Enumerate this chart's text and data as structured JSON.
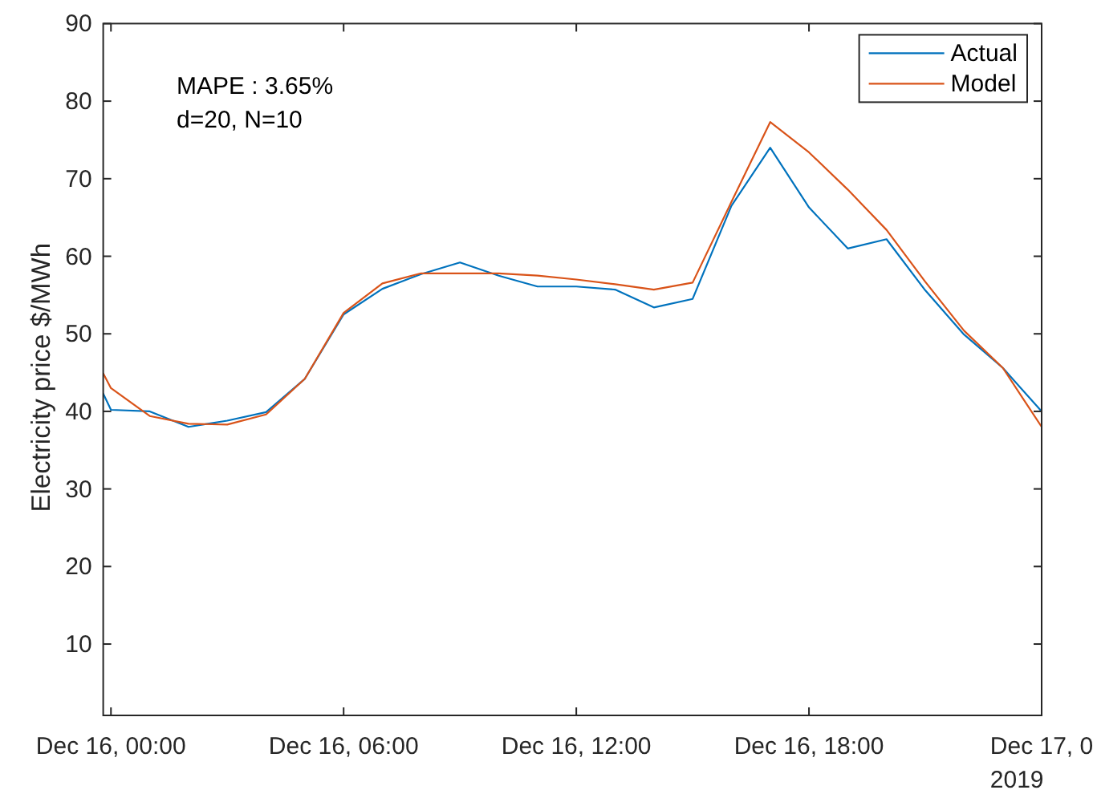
{
  "chart_data": {
    "type": "line",
    "ylabel": "Electricity price $/MWh",
    "annotations": [
      "MAPE : 3.65%",
      "d=20, N=10",
      "2019"
    ],
    "x": [
      "2019-12-15T23:48",
      "2019-12-16T00:00",
      "2019-12-16T01:00",
      "2019-12-16T02:00",
      "2019-12-16T03:00",
      "2019-12-16T04:00",
      "2019-12-16T05:00",
      "2019-12-16T06:00",
      "2019-12-16T07:00",
      "2019-12-16T08:00",
      "2019-12-16T09:00",
      "2019-12-16T10:00",
      "2019-12-16T11:00",
      "2019-12-16T12:00",
      "2019-12-16T13:00",
      "2019-12-16T14:00",
      "2019-12-16T15:00",
      "2019-12-16T16:00",
      "2019-12-16T17:00",
      "2019-12-16T18:00",
      "2019-12-16T19:00",
      "2019-12-16T20:00",
      "2019-12-16T21:00",
      "2019-12-16T22:00",
      "2019-12-16T23:00",
      "2019-12-17T00:00"
    ],
    "series": [
      {
        "name": "Actual",
        "color": "#0072bd",
        "values": [
          42.3,
          40.2,
          40.0,
          38.0,
          38.8,
          39.9,
          44.2,
          52.5,
          55.8,
          57.7,
          59.2,
          57.5,
          56.1,
          56.1,
          55.7,
          53.4,
          54.5,
          66.5,
          74.0,
          66.3,
          61.0,
          62.2,
          55.6,
          49.9,
          45.6,
          40.0
        ]
      },
      {
        "name": "Model",
        "color": "#d95319",
        "values": [
          44.9,
          43.0,
          39.4,
          38.4,
          38.3,
          39.6,
          44.2,
          52.7,
          56.5,
          57.8,
          57.8,
          57.8,
          57.5,
          57.0,
          56.4,
          55.7,
          56.6,
          67.0,
          77.3,
          73.4,
          68.6,
          63.4,
          56.7,
          50.4,
          45.6,
          38.0
        ]
      }
    ],
    "xlim": [
      "2019-12-15T23:48",
      "2019-12-17T00:00"
    ],
    "xticks": [
      {
        "value": "2019-12-16T00:00",
        "label": "Dec 16, 00:00"
      },
      {
        "value": "2019-12-16T06:00",
        "label": "Dec 16, 06:00"
      },
      {
        "value": "2019-12-16T12:00",
        "label": "Dec 16, 12:00"
      },
      {
        "value": "2019-12-16T18:00",
        "label": "Dec 16, 18:00"
      },
      {
        "value": "2019-12-17T00:00",
        "label": "Dec 17, 0"
      }
    ],
    "ylim": [
      0.8,
      90
    ],
    "yticks": [
      10,
      20,
      30,
      40,
      50,
      60,
      70,
      80,
      90
    ],
    "legend": "top right"
  }
}
